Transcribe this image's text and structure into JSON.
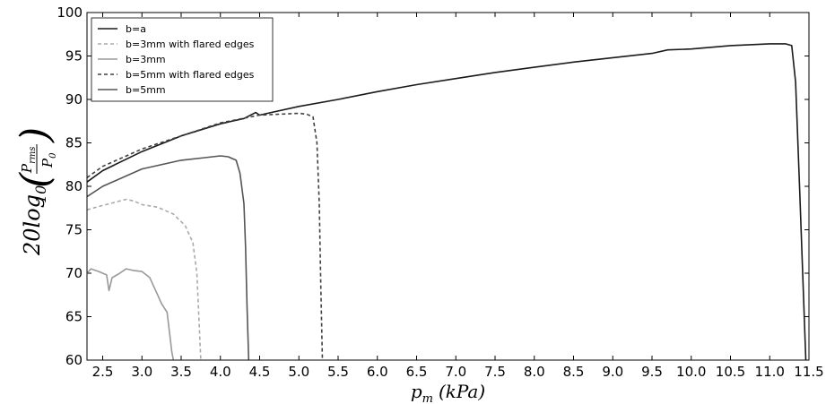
{
  "chart_data": {
    "type": "line",
    "xlabel": "p_m (kPa)",
    "ylabel": "20log10(P_rms / P_0)",
    "xlim": [
      2.3,
      11.5
    ],
    "ylim": [
      60,
      100
    ],
    "xticks": [
      "2.5",
      "3.0",
      "3.5",
      "4.0",
      "4.5",
      "5.0",
      "5.5",
      "6.0",
      "6.5",
      "7.0",
      "7.5",
      "8.0",
      "8.5",
      "9.0",
      "9.5",
      "10.0",
      "10.5",
      "11.0",
      "11.5"
    ],
    "yticks": [
      "60",
      "65",
      "70",
      "75",
      "80",
      "85",
      "90",
      "95",
      "100"
    ],
    "legend_position": "top-left",
    "grid": false,
    "series": [
      {
        "name": "b=a",
        "color": "#1a1a1a",
        "dash": "solid",
        "x": [
          2.3,
          2.5,
          3.0,
          3.5,
          4.0,
          4.3,
          4.45,
          4.5,
          4.6,
          5.0,
          5.5,
          6.0,
          6.5,
          7.0,
          7.5,
          8.0,
          8.5,
          9.0,
          9.5,
          9.7,
          10.0,
          10.5,
          11.0,
          11.2,
          11.28,
          11.33,
          11.38,
          11.42,
          11.46
        ],
        "y": [
          80.5,
          81.8,
          84.0,
          85.8,
          87.2,
          87.8,
          88.5,
          88.2,
          88.4,
          89.2,
          90.0,
          90.9,
          91.7,
          92.4,
          93.1,
          93.7,
          94.3,
          94.8,
          95.3,
          95.7,
          95.8,
          96.2,
          96.4,
          96.4,
          96.2,
          92.0,
          80.0,
          70.0,
          60.0
        ]
      },
      {
        "name": "b=3mm with flared edges",
        "color": "#aaaaaa",
        "dash": "dashed",
        "x": [
          2.3,
          2.5,
          2.8,
          2.9,
          3.0,
          3.2,
          3.4,
          3.55,
          3.65,
          3.7,
          3.72,
          3.74,
          3.75
        ],
        "y": [
          77.3,
          77.8,
          78.5,
          78.3,
          77.9,
          77.6,
          76.8,
          75.5,
          73.5,
          70.0,
          66.0,
          62.0,
          60.0
        ]
      },
      {
        "name": "b=3mm",
        "color": "#999999",
        "dash": "solid",
        "x": [
          2.3,
          2.35,
          2.45,
          2.55,
          2.58,
          2.62,
          2.7,
          2.8,
          2.9,
          3.0,
          3.1,
          3.2,
          3.25,
          3.32,
          3.36,
          3.38,
          3.4
        ],
        "y": [
          70.0,
          70.5,
          70.2,
          69.8,
          68.0,
          69.5,
          69.9,
          70.5,
          70.3,
          70.2,
          69.5,
          67.5,
          66.5,
          65.5,
          62.5,
          61.0,
          60.0
        ]
      },
      {
        "name": "b=5mm with flared edges",
        "color": "#404040",
        "dash": "dashed",
        "x": [
          2.3,
          2.5,
          3.0,
          3.5,
          4.0,
          4.5,
          5.0,
          5.1,
          5.18,
          5.23,
          5.26,
          5.28,
          5.3
        ],
        "y": [
          81.0,
          82.3,
          84.3,
          85.8,
          87.3,
          88.2,
          88.4,
          88.3,
          88.0,
          85.0,
          78.0,
          68.0,
          60.0
        ]
      },
      {
        "name": "b=5mm",
        "color": "#555555",
        "dash": "solid",
        "x": [
          2.3,
          2.5,
          3.0,
          3.5,
          3.8,
          4.0,
          4.1,
          4.2,
          4.25,
          4.3,
          4.32,
          4.34,
          4.36
        ],
        "y": [
          78.8,
          80.0,
          82.0,
          83.0,
          83.3,
          83.5,
          83.4,
          83.0,
          81.5,
          78.0,
          73.0,
          66.0,
          60.0
        ]
      }
    ]
  }
}
